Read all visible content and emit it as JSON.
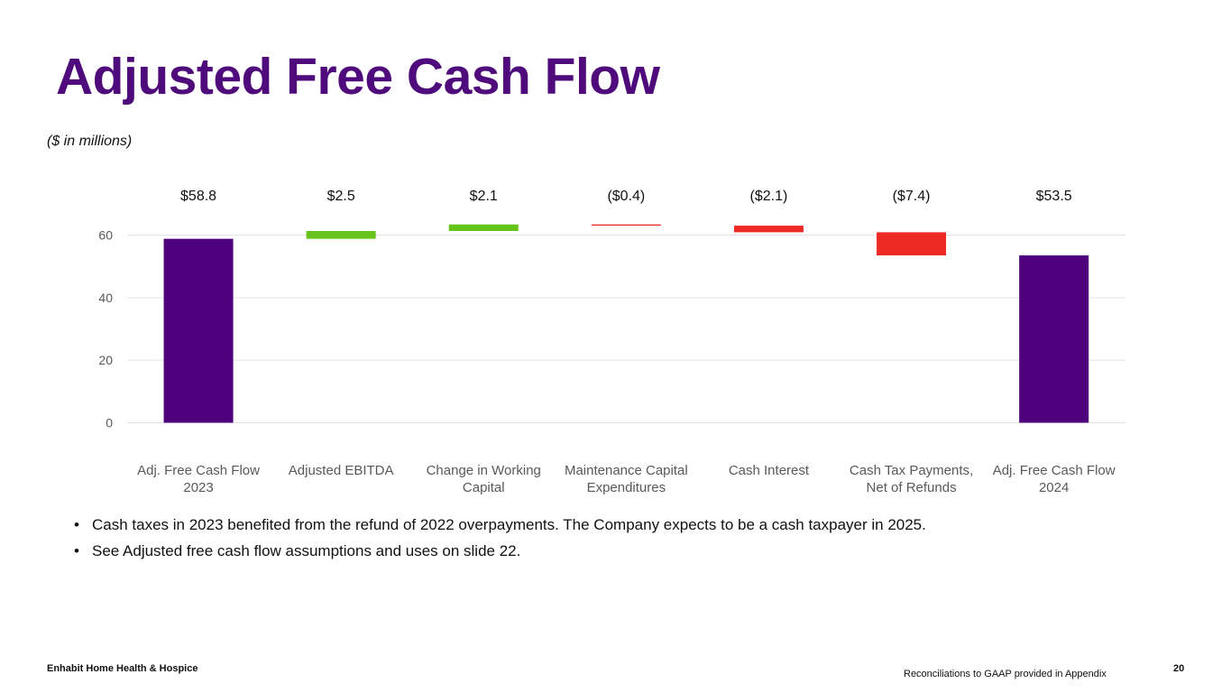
{
  "page": {
    "title": "Adjusted Free Cash Flow",
    "subtitle": "($ in millions)",
    "bullets": [
      "Cash taxes in 2023 benefited from the refund of 2022 overpayments. The Company expects to be a cash taxpayer in 2025.",
      "See Adjusted free cash flow assumptions and uses on slide 22."
    ],
    "bullet_symbol": "•",
    "footer": {
      "company": "Enhabit Home Health & Hospice",
      "note": "Reconciliations to GAAP provided in Appendix",
      "page_number": "20"
    }
  },
  "chart_data": {
    "type": "bar",
    "subtype": "waterfall",
    "categories": [
      [
        "Adj. Free Cash Flow",
        "2023"
      ],
      [
        "Adjusted EBITDA"
      ],
      [
        "Change in Working",
        "Capital"
      ],
      [
        "Maintenance Capital",
        "Expenditures"
      ],
      [
        "Cash Interest"
      ],
      [
        "Cash Tax Payments,",
        "Net of Refunds"
      ],
      [
        "Adj. Free Cash Flow",
        "2024"
      ]
    ],
    "values": [
      58.8,
      2.5,
      2.1,
      -0.4,
      -2.1,
      -7.4,
      53.5
    ],
    "bar_kinds": [
      "total",
      "delta",
      "delta",
      "delta",
      "delta",
      "delta",
      "total"
    ],
    "data_labels": [
      "$58.8",
      "$2.5",
      "$2.1",
      "($0.4)",
      "($2.1)",
      "($7.4)",
      "$53.5"
    ],
    "ylim": [
      0,
      60
    ],
    "yticks": [
      0,
      20,
      40,
      60
    ],
    "grid": true,
    "legend": "none",
    "colors": {
      "total": "#4f007d",
      "increase": "#66c41a",
      "decrease": "#ee2a24",
      "grid": "#e3e3e3",
      "tick_label": "#595959"
    }
  }
}
